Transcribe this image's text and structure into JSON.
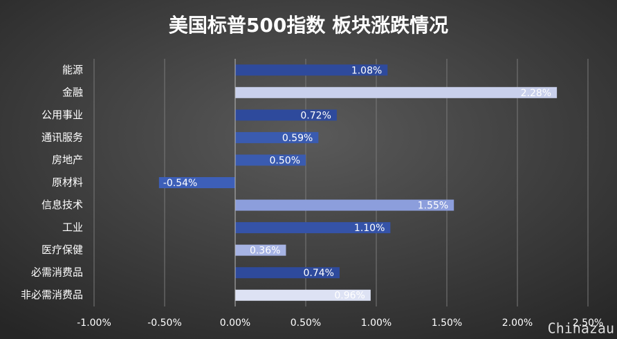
{
  "chart_data": {
    "type": "bar",
    "orientation": "horizontal",
    "title": "美国标普500指数 板块涨跌情况",
    "categories": [
      "能源",
      "金融",
      "公用事业",
      "通讯服务",
      "房地产",
      "原材料",
      "信息技术",
      "工业",
      "医疗保健",
      "必需消费品",
      "非必需消费品"
    ],
    "values": [
      1.08,
      2.28,
      0.72,
      0.59,
      0.5,
      -0.54,
      1.55,
      1.1,
      0.36,
      0.74,
      0.96
    ],
    "value_labels": [
      "1.08%",
      "2.28%",
      "0.72%",
      "0.59%",
      "0.50%",
      "-0.54%",
      "1.55%",
      "1.10%",
      "0.36%",
      "0.74%",
      "0.96%"
    ],
    "colors": [
      "#2e4a9c",
      "#c9d0ec",
      "#2e4a9c",
      "#3a5bb0",
      "#3a5bb0",
      "#3d5fb8",
      "#8c9edc",
      "#3553a8",
      "#a7b4e4",
      "#2e4a9c",
      "#dde2f4"
    ],
    "xlim": [
      -1.0,
      2.5
    ],
    "xticks": [
      {
        "value": -1.0,
        "label": "-1.00%"
      },
      {
        "value": -0.5,
        "label": "-0.50%"
      },
      {
        "value": 0,
        "label": "0.00%"
      },
      {
        "value": 0.5,
        "label": "0.50%"
      },
      {
        "value": 1.0,
        "label": "1.00%"
      },
      {
        "value": 1.5,
        "label": "1.50%"
      },
      {
        "value": 2.0,
        "label": "2.00%"
      },
      {
        "value": 2.5,
        "label": "2.50%"
      }
    ],
    "grid": true,
    "watermark": "Chinazau"
  }
}
